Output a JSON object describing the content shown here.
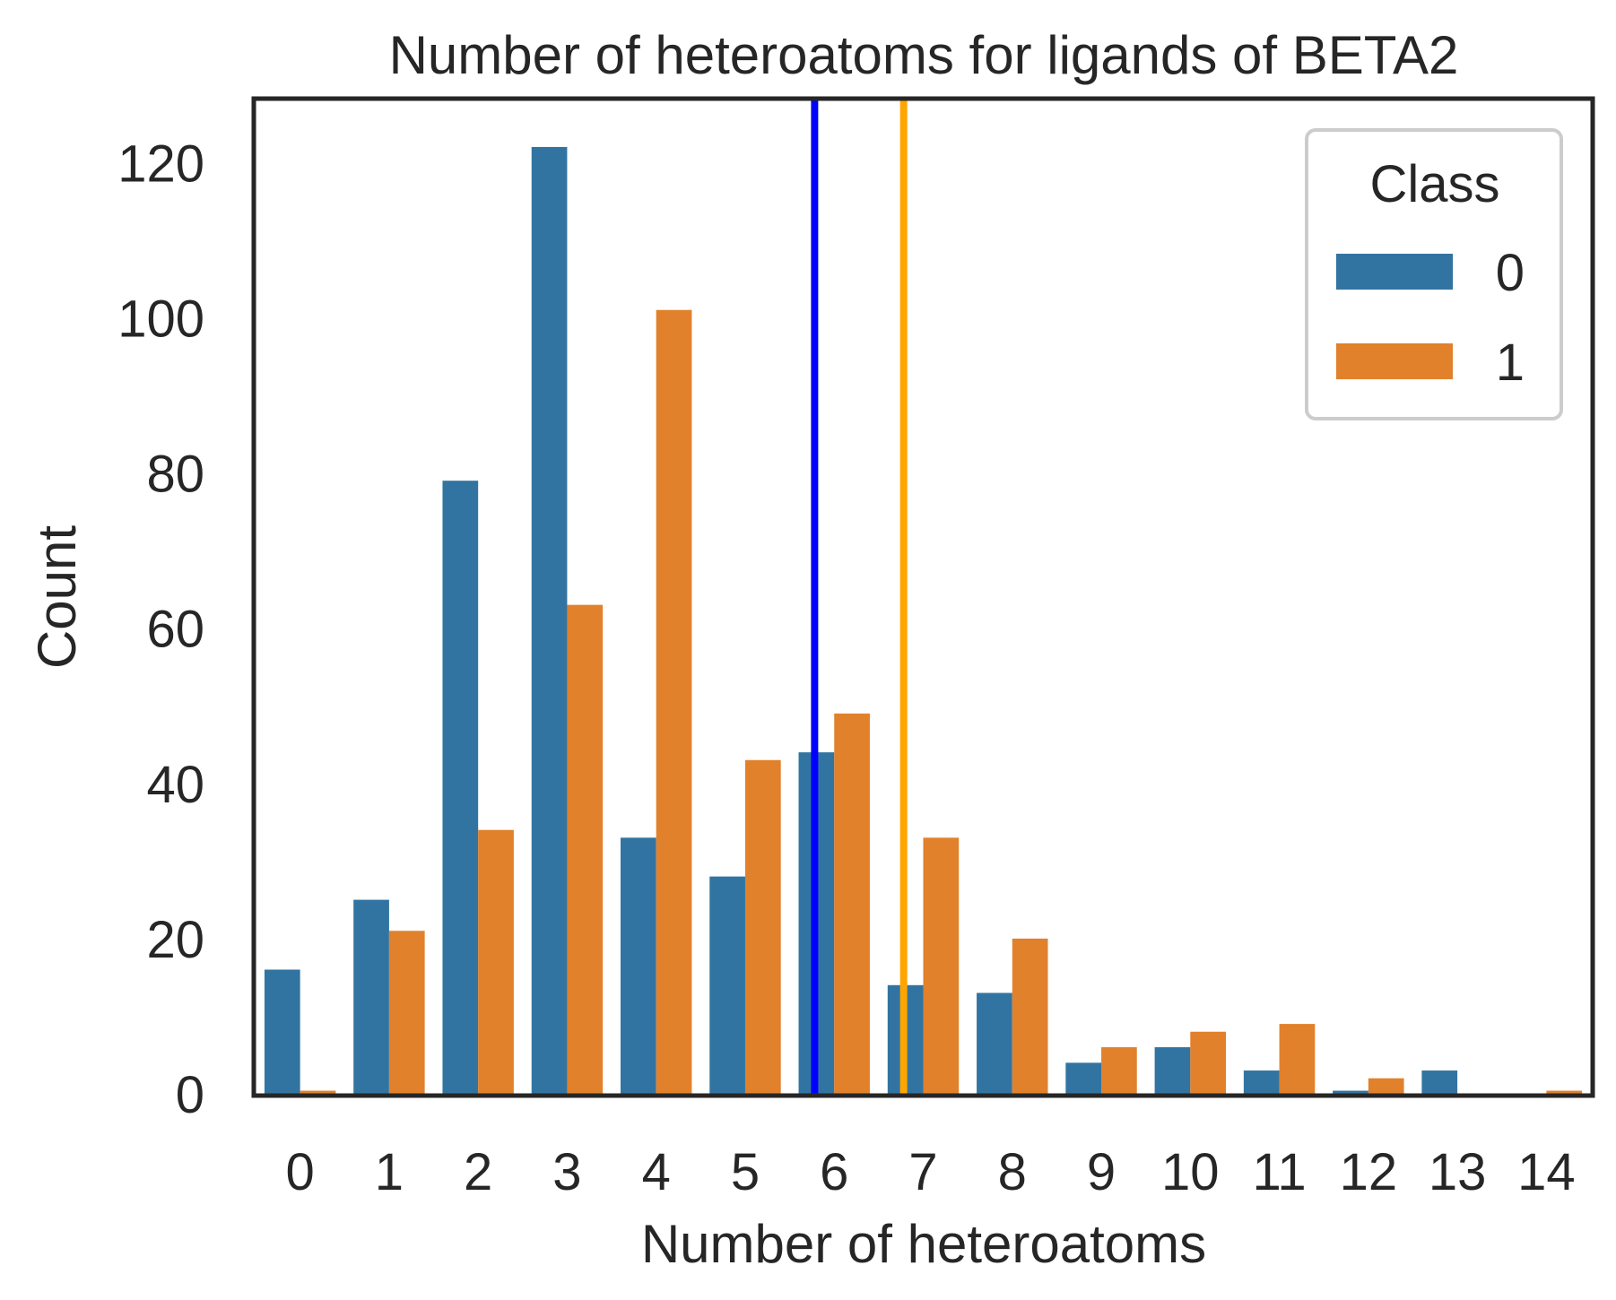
{
  "chart_data": {
    "type": "bar",
    "title": "Number of heteroatoms for ligands of BETA2",
    "xlabel": "Number of heteroatoms",
    "ylabel": "Count",
    "categories": [
      "0",
      "1",
      "2",
      "3",
      "4",
      "5",
      "6",
      "7",
      "8",
      "9",
      "10",
      "11",
      "12",
      "13",
      "14"
    ],
    "series": [
      {
        "name": "0",
        "color": "#3274a1",
        "values": [
          16,
          25,
          79,
          122,
          33,
          28,
          44,
          14,
          13,
          4,
          6,
          3,
          0.4,
          3,
          0
        ]
      },
      {
        "name": "1",
        "color": "#e1812c",
        "values": [
          0.4,
          21,
          34,
          63,
          101,
          43,
          49,
          33,
          20,
          6,
          8,
          9,
          2,
          0,
          0.4
        ]
      }
    ],
    "ylim": [
      0,
      128
    ],
    "yticks": [
      0,
      20,
      40,
      60,
      80,
      100,
      120
    ],
    "legend": {
      "title": "Class",
      "position": "top-right"
    },
    "vlines": [
      {
        "x": 5.78,
        "color": "#0000ff"
      },
      {
        "x": 6.78,
        "color": "#ffa500"
      }
    ],
    "grid": false
  }
}
